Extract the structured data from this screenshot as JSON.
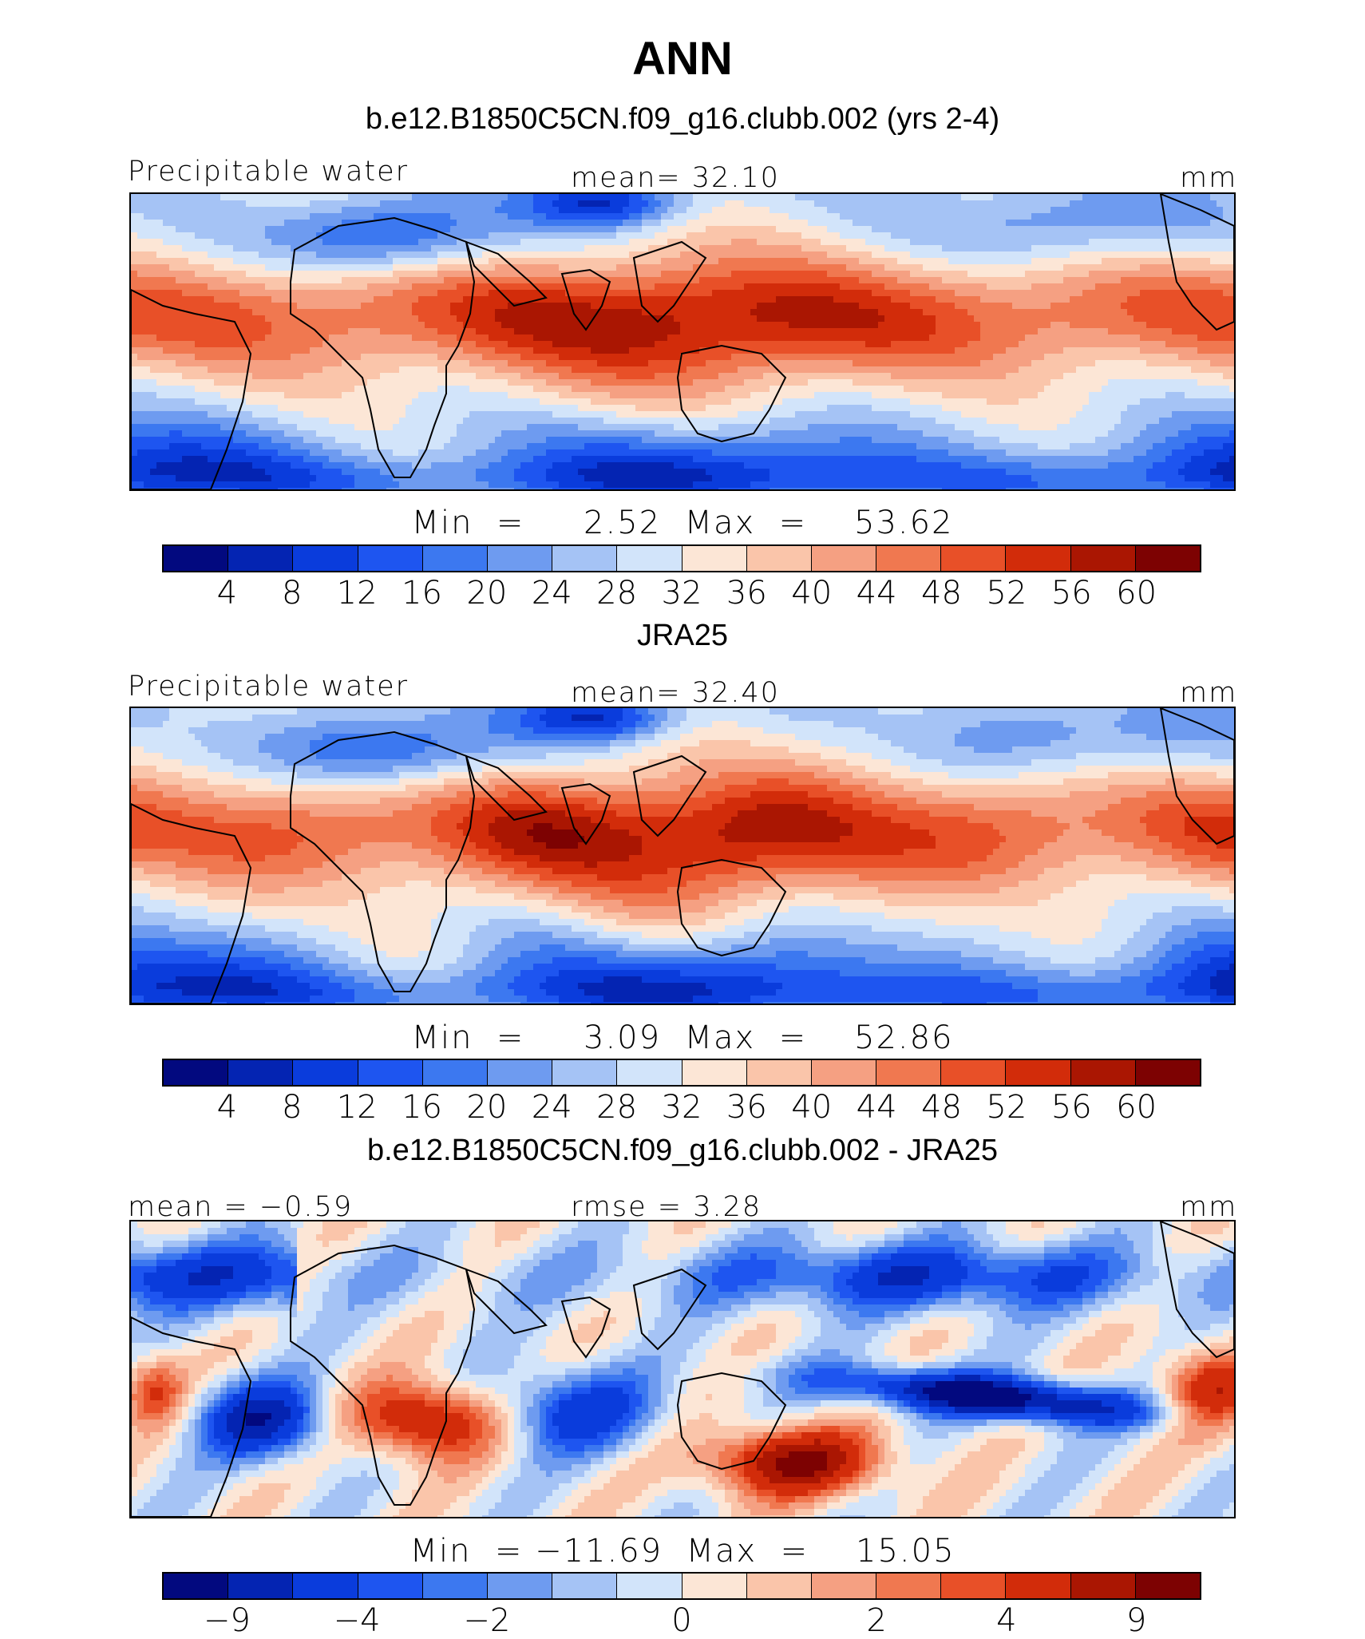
{
  "title": "ANN",
  "colors": {
    "scale": [
      "#02097f",
      "#0424b2",
      "#0a3cdc",
      "#1e55f0",
      "#3c78f0",
      "#6e9bf0",
      "#a5c3f5",
      "#d2e4fa",
      "#fce6d6",
      "#fac5aa",
      "#f5a082",
      "#f07850",
      "#e85028",
      "#d22c0a",
      "#aa1602",
      "#7d0202"
    ],
    "diff_scale": [
      "#02097f",
      "#0424b2",
      "#0a3cdc",
      "#1e55f0",
      "#3c78f0",
      "#6e9bf0",
      "#a5c3f5",
      "#d2e4fa",
      "#fce6d6",
      "#fac5aa",
      "#f5a082",
      "#f07850",
      "#e85028",
      "#d22c0a",
      "#aa1602",
      "#7d0202"
    ],
    "coast": "#000000"
  },
  "panels": [
    {
      "case_label": "b.e12.B1850C5CN.f09_g16.clubb.002 (yrs 2-4)",
      "left_label": "Precipitable water",
      "center_label": "mean=   32.10",
      "units": "mm",
      "minmax": "Min  =     2.52  Max  =    53.62",
      "ticks": [
        "4",
        "8",
        "12",
        "16",
        "20",
        "24",
        "28",
        "32",
        "36",
        "40",
        "44",
        "48",
        "52",
        "56",
        "60"
      ],
      "field": "model"
    },
    {
      "case_label": "JRA25",
      "left_label": "Precipitable water",
      "center_label": "mean=   32.40",
      "units": "mm",
      "minmax": "Min  =     3.09  Max  =    52.86",
      "ticks": [
        "4",
        "8",
        "12",
        "16",
        "20",
        "24",
        "28",
        "32",
        "36",
        "40",
        "44",
        "48",
        "52",
        "56",
        "60"
      ],
      "field": "obs"
    },
    {
      "case_label": "b.e12.B1850C5CN.f09_g16.clubb.002 - JRA25",
      "left_label": "mean =   −0.59",
      "center_label": "rmse =     3.28",
      "units": "mm",
      "minmax": "Min  = −11.69  Max  =    15.05",
      "ticks": [
        "−9",
        "−4",
        "−2",
        "0",
        "2",
        "4",
        "9"
      ],
      "field": "diff"
    }
  ]
}
